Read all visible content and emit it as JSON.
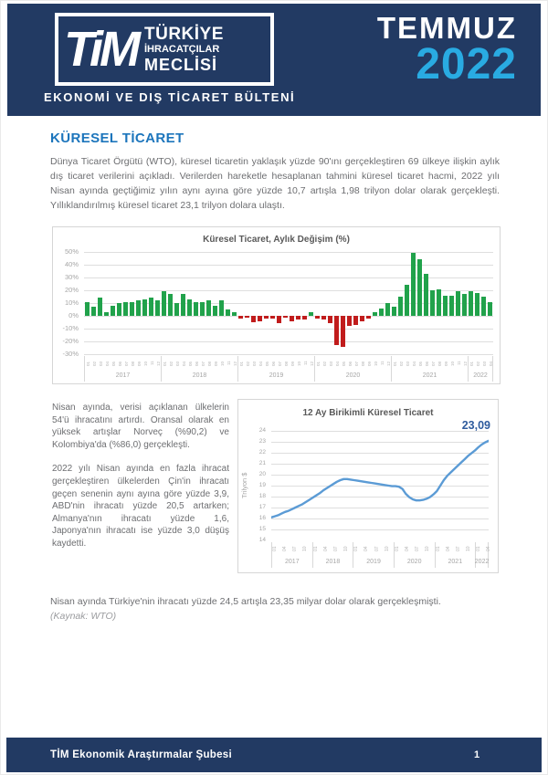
{
  "header": {
    "logo": {
      "tim": "TiM",
      "line1": "TÜRKİYE",
      "line2": "İHRACATÇILAR",
      "line3": "MECLİSİ"
    },
    "subtitle": "EKONOMİ VE DIŞ TİCARET BÜLTENİ",
    "month": "TEMMUZ",
    "year": "2022"
  },
  "section": {
    "title": "KÜRESEL TİCARET",
    "intro": "Dünya Ticaret Örgütü (WTO), küresel ticaretin yaklaşık yüzde 90'ını gerçekleştiren 69 ülkeye ilişkin aylık dış ticaret verilerini açıkladı. Verilerden hareketle hesaplanan tahmini küresel ticaret hacmi, 2022 yılı Nisan ayında geçtiğimiz yılın aynı ayına göre yüzde 10,7 artışla 1,98 trilyon dolar olarak gerçekleşti. Yıllıklandırılmış küresel ticaret 23,1 trilyon dolara ulaştı."
  },
  "left_column": {
    "para1": "Nisan ayında, verisi açıklanan ülkelerin 54'ü ihracatını artırdı. Oransal olarak en yüksek artışlar Norveç (%90,2) ve Kolombiya'da (%86,0) gerçekleşti.",
    "para2": "2022 yılı Nisan ayında en fazla ihracat gerçekleştiren ülkelerden Çin'in ihracatı geçen senenin aynı ayına göre yüzde 3,9, ABD'nin ihracatı yüzde 20,5 artarken; Almanya'nın ihracatı yüzde 1,6, Japonya'nın ihracatı ise yüzde 3,0 düşüş kaydetti."
  },
  "closing": {
    "text": "Nisan ayında Türkiye'nin ihracatı yüzde 24,5 artışla 23,35 milyar dolar olarak gerçekleşmişti.",
    "source": "(Kaynak: WTO)"
  },
  "footer": {
    "label": "TİM Ekonomik Araştırmalar Şubesi",
    "page": "1"
  },
  "colors": {
    "navy": "#223A63",
    "cyan": "#29ABE2",
    "heading": "#1C75BC",
    "text": "#6D6E71",
    "muted": "#9A9B9E",
    "charttitle": "#595959",
    "axis": "#A6A6A6",
    "grid": "#DEDEDE",
    "panelborder": "#D6D6D6",
    "green": "#21A24B",
    "red": "#C11C1C",
    "line": "#5B9BD5",
    "anno": "#2E5B9D"
  },
  "chart_data": [
    {
      "type": "bar",
      "title": "Küresel Ticaret, Aylık Değişim (%)",
      "ylim": [
        -30,
        50
      ],
      "ytick_values": [
        50,
        40,
        30,
        20,
        10,
        0,
        -10,
        -20,
        -30
      ],
      "ytick_labels": [
        "50%",
        "40%",
        "30%",
        "20%",
        "10%",
        "0%",
        "-10%",
        "-20%",
        "-30%"
      ],
      "years": [
        "2017",
        "2018",
        "2019",
        "2020",
        "2021",
        "2022"
      ],
      "months_per_year": [
        12,
        12,
        12,
        12,
        12,
        4
      ],
      "month_labels": [
        "01",
        "02",
        "03",
        "04",
        "05",
        "06",
        "07",
        "08",
        "09",
        "10",
        "11",
        "12"
      ],
      "values": [
        11,
        7,
        14,
        3,
        8,
        10,
        11,
        11,
        12,
        13,
        14,
        12,
        19,
        17,
        10,
        17,
        13,
        11,
        11,
        12,
        8,
        12,
        5,
        3,
        -2,
        -1,
        -5,
        -4,
        -2,
        -2,
        -6,
        -1,
        -4,
        -3,
        -3,
        3,
        -2,
        -3,
        -6,
        -23,
        -24,
        -8,
        -7,
        -4,
        -2,
        3,
        6,
        10,
        7,
        15,
        24,
        49,
        44,
        33,
        20,
        21,
        16,
        16,
        19,
        17,
        19,
        18,
        15,
        11
      ],
      "positive_color": "#21A24B",
      "negative_color": "#C11C1C",
      "grid": true,
      "legend": "none"
    },
    {
      "type": "line",
      "title": "12 Ay Birikimli Küresel Ticaret",
      "ylabel": "Trilyon $",
      "ylim": [
        14,
        24
      ],
      "ytick_values": [
        24,
        23,
        22,
        21,
        20,
        19,
        18,
        17,
        16,
        15,
        14
      ],
      "ytick_labels": [
        "24",
        "23",
        "22",
        "21",
        "20",
        "19",
        "18",
        "17",
        "16",
        "15",
        "14"
      ],
      "years": [
        "2017",
        "2018",
        "2019",
        "2020",
        "2021",
        "2022"
      ],
      "months_per_year": [
        12,
        12,
        12,
        12,
        12,
        4
      ],
      "x_tick_labels": [
        "01",
        "04",
        "07",
        "10"
      ],
      "annotation": "23,09",
      "values": [
        16.1,
        16.2,
        16.3,
        16.45,
        16.6,
        16.7,
        16.85,
        17.0,
        17.15,
        17.3,
        17.5,
        17.7,
        17.9,
        18.1,
        18.3,
        18.55,
        18.75,
        18.95,
        19.15,
        19.35,
        19.5,
        19.6,
        19.6,
        19.55,
        19.5,
        19.45,
        19.4,
        19.35,
        19.3,
        19.25,
        19.2,
        19.15,
        19.1,
        19.05,
        19.0,
        18.95,
        18.95,
        18.9,
        18.7,
        18.25,
        17.95,
        17.75,
        17.65,
        17.65,
        17.7,
        17.8,
        17.95,
        18.2,
        18.5,
        19.0,
        19.5,
        19.9,
        20.2,
        20.5,
        20.8,
        21.1,
        21.4,
        21.7,
        21.95,
        22.2,
        22.5,
        22.75,
        22.95,
        23.09
      ],
      "line_color": "#5B9BD5",
      "grid": true,
      "legend": "none"
    }
  ]
}
